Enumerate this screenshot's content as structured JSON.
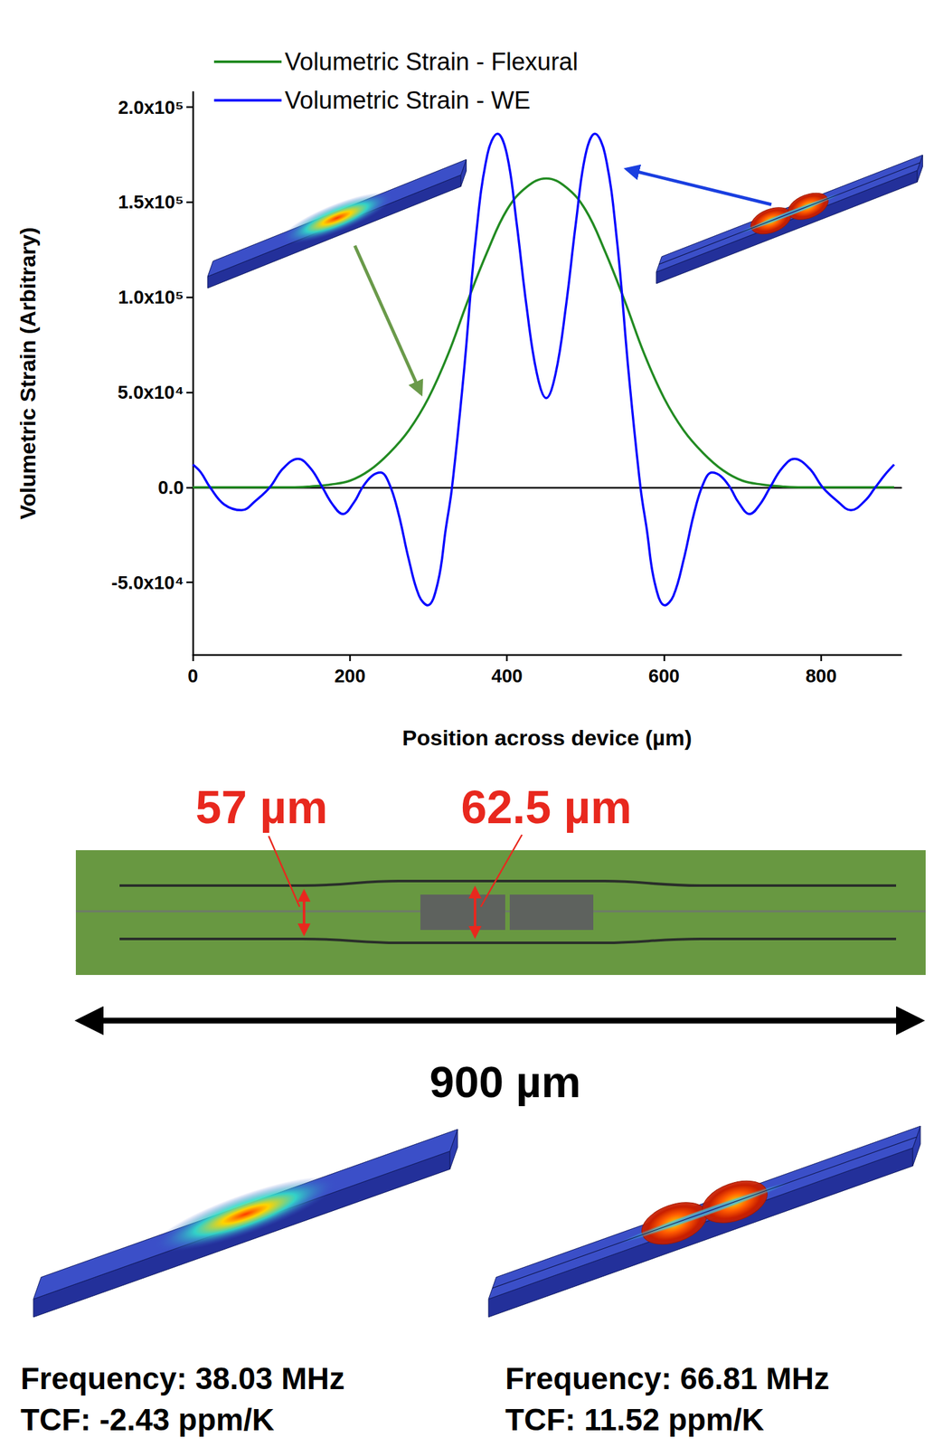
{
  "chart_data": {
    "type": "line",
    "x_label": "Position across device (µm)",
    "y_label": "Volumetric Strain (Arbitrary)",
    "xlim": [
      0,
      902
    ],
    "xticks": [
      0,
      200,
      400,
      600,
      800
    ],
    "ylim": [
      -88000,
      208000
    ],
    "yticks": [
      {
        "value": -50000,
        "label": "-5.0x10⁴"
      },
      {
        "value": 0,
        "label": "0.0"
      },
      {
        "value": 50000,
        "label": "5.0x10⁴"
      },
      {
        "value": 100000,
        "label": "1.0x10⁵"
      },
      {
        "value": 150000,
        "label": "1.5x10⁵"
      },
      {
        "value": 200000,
        "label": "2.0x10⁵"
      }
    ],
    "grid": false,
    "legend": "upper left",
    "series": [
      {
        "name": "Volumetric Strain - Flexural",
        "color": "#228b22",
        "x": [
          0,
          25,
          50,
          75,
          100,
          125,
          150,
          175,
          200,
          225,
          250,
          275,
          300,
          325,
          350,
          375,
          400,
          425,
          450,
          475,
          500,
          525,
          550,
          575,
          600,
          625,
          650,
          675,
          700,
          725,
          750,
          775,
          800,
          825,
          850,
          875,
          893
        ],
        "values": [
          0,
          0,
          0,
          0,
          0,
          0,
          500,
          1500,
          3500,
          9000,
          18000,
          30000,
          47000,
          70000,
          98000,
          124000,
          146000,
          158000,
          162500,
          158000,
          146000,
          124000,
          98000,
          70000,
          47000,
          30000,
          18000,
          9000,
          3500,
          1500,
          500,
          0,
          0,
          0,
          0,
          0,
          0
        ]
      },
      {
        "name": "Volumetric Strain - WE",
        "color": "#0000ff",
        "x": [
          0,
          10,
          22,
          40,
          62,
          80,
          98,
          115,
          134,
          150,
          165,
          178,
          191,
          205,
          216,
          228,
          239,
          250,
          262,
          275,
          288,
          299,
          312,
          322,
          330,
          345,
          360,
          375,
          388,
          400,
          412,
          425,
          438,
          450,
          462,
          475,
          488,
          500,
          512,
          525,
          540,
          555,
          570,
          578,
          588,
          601,
          612,
          625,
          638,
          650,
          661,
          672,
          684,
          695,
          709,
          722,
          735,
          750,
          766,
          785,
          802,
          820,
          838,
          856,
          869,
          882,
          893
        ],
        "values": [
          12000,
          8000,
          0,
          -9000,
          -12000,
          -7000,
          0,
          10000,
          15000,
          10000,
          0,
          -9000,
          -14000,
          -8000,
          0,
          6000,
          7800,
          2000,
          -14000,
          -38000,
          -57000,
          -62000,
          -50000,
          -22000,
          0,
          60000,
          130000,
          175000,
          186000,
          175000,
          140000,
          95000,
          60000,
          47000,
          60000,
          95000,
          140000,
          175000,
          186000,
          175000,
          130000,
          60000,
          0,
          -22000,
          -50000,
          -62000,
          -57000,
          -38000,
          -14000,
          2000,
          7800,
          6000,
          0,
          -8000,
          -14000,
          -9000,
          0,
          10000,
          15000,
          10000,
          0,
          -7000,
          -12000,
          -7000,
          0,
          7000,
          12000
        ]
      }
    ]
  },
  "device_image": {
    "dimensions": [
      "57 µm",
      "62.5 µm"
    ],
    "length": "900 µm"
  },
  "mode_panels": [
    {
      "frequency": "Frequency: 38.03 MHz",
      "tcf": "TCF: -2.43 ppm/K"
    },
    {
      "frequency": "Frequency: 66.81 MHz",
      "tcf": "TCF: 11.52 ppm/K"
    }
  ]
}
